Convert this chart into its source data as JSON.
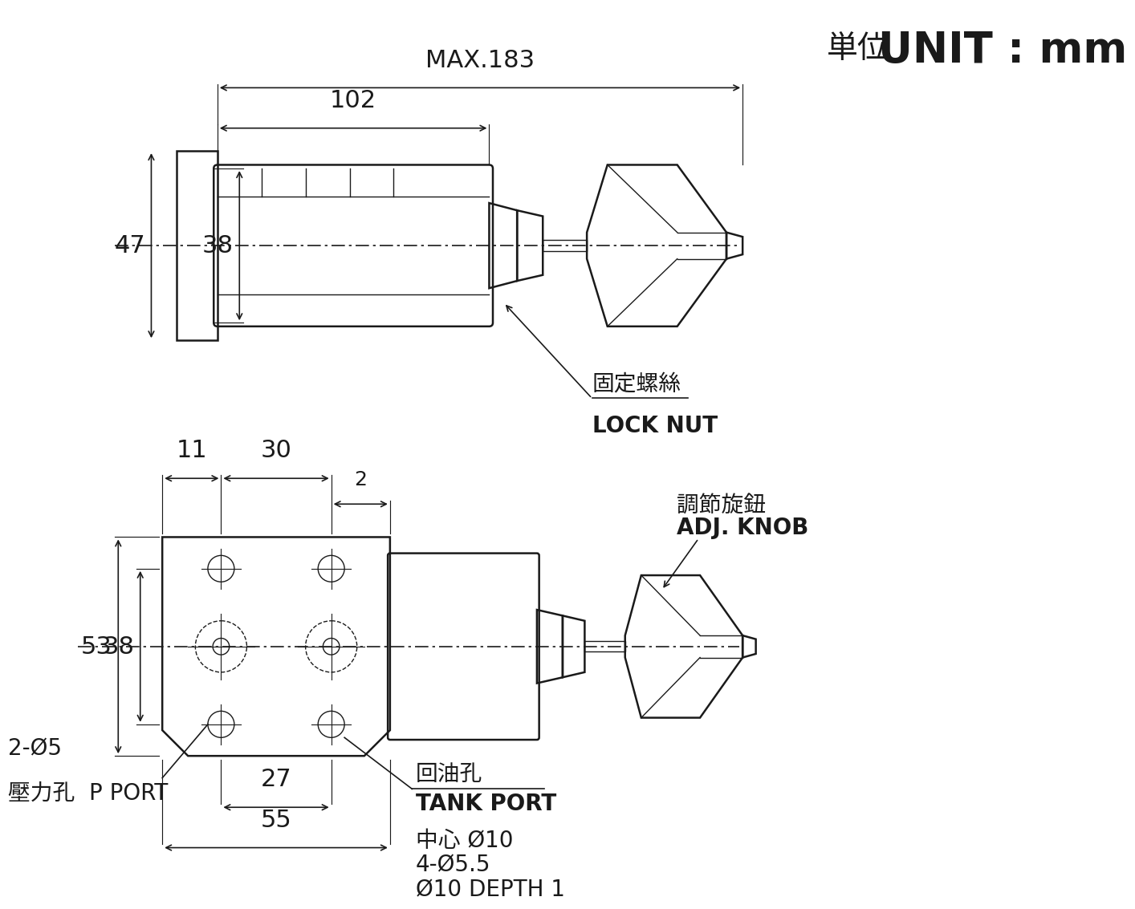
{
  "bg_color": "#ffffff",
  "line_color": "#1a1a1a",
  "unit_jp": "単位",
  "unit_en": "UNIT : mm",
  "lock_nut_jp": "固定螺絲",
  "lock_nut_en": "LOCK NUT",
  "adj_knob_jp": "調節旋鈕",
  "adj_knob_en": "ADJ. KNOB",
  "tank_port_jp": "回油孔",
  "tank_port_en": "TANK PORT",
  "p_port_line1": "2-Ø5",
  "p_port_line2": "壓力孔  P PORT",
  "center_hole": "中心 Ø10",
  "holes_455": "4-Ø5.5",
  "depth": "Ø10 DEPTH 1",
  "dim_47": "47",
  "dim_38": "38",
  "dim_102": "102",
  "dim_max183": "MAX.183",
  "dim_11": "11",
  "dim_30": "30",
  "dim_2": "2",
  "dim_53": "53",
  "dim_38b": "38",
  "dim_27": "27",
  "dim_55": "55"
}
